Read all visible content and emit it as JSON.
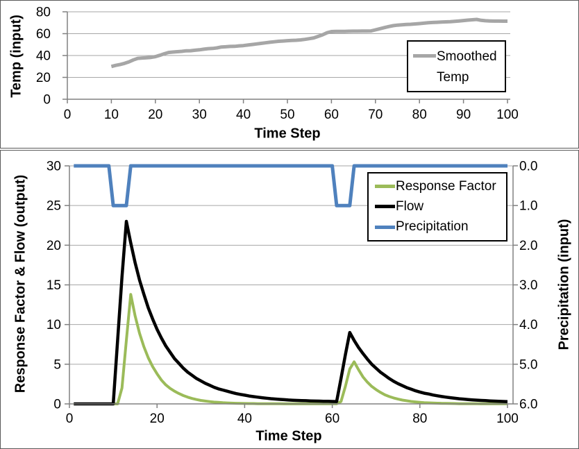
{
  "chart_data": [
    {
      "type": "line",
      "title": "",
      "xlabel": "Time Step",
      "ylabel": "Temp (input)",
      "xlim": [
        0,
        100
      ],
      "ylim": [
        0,
        80
      ],
      "x_ticks": [
        0,
        10,
        20,
        30,
        40,
        50,
        60,
        70,
        80,
        90,
        100
      ],
      "y_ticks": [
        0,
        20,
        40,
        60,
        80
      ],
      "gridlines": [
        20,
        40,
        60,
        80
      ],
      "grid": "horizontal",
      "legend_position": "inside-right",
      "series": [
        {
          "name": "Smoothed Temp",
          "color": "#a6a6a6",
          "width": 5,
          "axis": "left",
          "x_start": 10,
          "x_step": 1,
          "values": [
            30,
            31,
            31.8,
            32.8,
            34.2,
            36,
            37.4,
            37.7,
            38,
            38.3,
            39,
            40.2,
            41.6,
            42.8,
            43.2,
            43.5,
            43.8,
            44.3,
            44.4,
            44.8,
            45.2,
            45.8,
            46.3,
            46.5,
            47,
            47.8,
            48,
            48.3,
            48.4,
            48.8,
            49.1,
            49.6,
            50.1,
            50.6,
            51.1,
            51.6,
            52.1,
            52.6,
            53,
            53.3,
            53.6,
            53.8,
            54,
            54.3,
            54.8,
            55.4,
            56.1,
            57.5,
            59,
            60.8,
            61.9,
            62,
            62,
            62.1,
            62.2,
            62.3,
            62.3,
            62.4,
            62.4,
            62.5,
            63.5,
            64.5,
            65.5,
            66.5,
            67.3,
            67.8,
            68.1,
            68.4,
            68.6,
            68.9,
            69.2,
            69.6,
            70,
            70.2,
            70.4,
            70.6,
            70.8,
            71,
            71.3,
            71.6,
            72,
            72.4,
            72.7,
            73,
            72.2,
            71.8,
            71.6,
            71.5,
            71.5,
            71.4,
            71.4
          ]
        }
      ]
    },
    {
      "type": "line",
      "title": "",
      "xlabel": "Time Step",
      "ylabel_left": "Response Factor & Flow (output)",
      "ylabel_right": "Precipitation (input)",
      "xlim": [
        0,
        100
      ],
      "ylim_left": [
        0,
        30
      ],
      "ylim_right": [
        0,
        6
      ],
      "right_axis_inverted": true,
      "x_ticks": [
        0,
        20,
        40,
        60,
        80,
        100
      ],
      "y_ticks": [
        0,
        5,
        10,
        15,
        20,
        25,
        30
      ],
      "right_ticks": [
        "0.0",
        "1.0",
        "2.0",
        "3.0",
        "4.0",
        "5.0",
        "6.0"
      ],
      "gridlines": [
        5,
        10,
        15,
        20,
        25,
        30
      ],
      "grid": "horizontal",
      "legend_position": "inside-top-right",
      "series": [
        {
          "name": "Response Factor",
          "color": "#9bbb59",
          "width": 4,
          "axis": "left",
          "x_start": 1,
          "x_step": 1,
          "values": [
            0,
            0,
            0,
            0,
            0,
            0,
            0,
            0,
            0,
            0,
            0,
            2,
            8,
            13.8,
            11.1,
            8.9,
            7.2,
            5.8,
            4.7,
            3.8,
            3,
            2.4,
            1.95,
            1.6,
            1.3,
            1.05,
            0.85,
            0.68,
            0.55,
            0.44,
            0.36,
            0.29,
            0.23,
            0.19,
            0.15,
            0.12,
            0.1,
            0.08,
            0.07,
            0.05,
            0.04,
            0.04,
            0.03,
            0.03,
            0.02,
            0.02,
            0.02,
            0.02,
            0.01,
            0.01,
            0.01,
            0.01,
            0.01,
            0.01,
            0.01,
            0.01,
            0.01,
            0.01,
            0.01,
            0.01,
            0.01,
            0.3,
            2.2,
            4.4,
            5.3,
            4.3,
            3.4,
            2.75,
            2.2,
            1.8,
            1.45,
            1.15,
            0.93,
            0.75,
            0.6,
            0.48,
            0.39,
            0.31,
            0.25,
            0.2,
            0.16,
            0.13,
            0.11,
            0.09,
            0.07,
            0.06,
            0.05,
            0.04,
            0.03,
            0.03,
            0.02,
            0.02,
            0.02,
            0.01,
            0.01,
            0.01,
            0.01,
            0.01,
            0.01,
            0.01
          ]
        },
        {
          "name": "Flow",
          "color": "#000000",
          "width": 4.5,
          "axis": "left",
          "x_start": 1,
          "x_step": 1,
          "values": [
            0,
            0,
            0,
            0,
            0,
            0,
            0,
            0,
            0,
            0,
            8,
            16,
            23,
            20.3,
            17.8,
            15.6,
            13.8,
            12.1,
            10.7,
            9.4,
            8.3,
            7.3,
            6.5,
            5.7,
            5.1,
            4.5,
            4,
            3.6,
            3.2,
            2.9,
            2.6,
            2.35,
            2.1,
            1.9,
            1.75,
            1.6,
            1.45,
            1.3,
            1.2,
            1.1,
            1,
            0.92,
            0.85,
            0.78,
            0.72,
            0.66,
            0.61,
            0.57,
            0.53,
            0.49,
            0.46,
            0.44,
            0.42,
            0.4,
            0.38,
            0.36,
            0.35,
            0.33,
            0.32,
            0.31,
            0.3,
            3.2,
            6.2,
            9,
            8,
            7.1,
            6.35,
            5.65,
            5,
            4.5,
            4,
            3.6,
            3.2,
            2.85,
            2.55,
            2.3,
            2.05,
            1.85,
            1.65,
            1.5,
            1.35,
            1.25,
            1.12,
            1.02,
            0.93,
            0.85,
            0.78,
            0.71,
            0.65,
            0.6,
            0.55,
            0.51,
            0.47,
            0.44,
            0.41,
            0.38,
            0.35,
            0.33,
            0.31,
            0.29
          ]
        },
        {
          "name": "Precipitation",
          "color": "#4f81bd",
          "width": 5,
          "axis": "right",
          "x_start": 1,
          "x_step": 1,
          "values": [
            0,
            0,
            0,
            0,
            0,
            0,
            0,
            0,
            0,
            1,
            1,
            1,
            1,
            0,
            0,
            0,
            0,
            0,
            0,
            0,
            0,
            0,
            0,
            0,
            0,
            0,
            0,
            0,
            0,
            0,
            0,
            0,
            0,
            0,
            0,
            0,
            0,
            0,
            0,
            0,
            0,
            0,
            0,
            0,
            0,
            0,
            0,
            0,
            0,
            0,
            0,
            0,
            0,
            0,
            0,
            0,
            0,
            0,
            0,
            0,
            1,
            1,
            1,
            1,
            0,
            0,
            0,
            0,
            0,
            0,
            0,
            0,
            0,
            0,
            0,
            0,
            0,
            0,
            0,
            0,
            0,
            0,
            0,
            0,
            0,
            0,
            0,
            0,
            0,
            0,
            0,
            0,
            0,
            0,
            0,
            0,
            0,
            0,
            0,
            0
          ]
        }
      ]
    }
  ]
}
